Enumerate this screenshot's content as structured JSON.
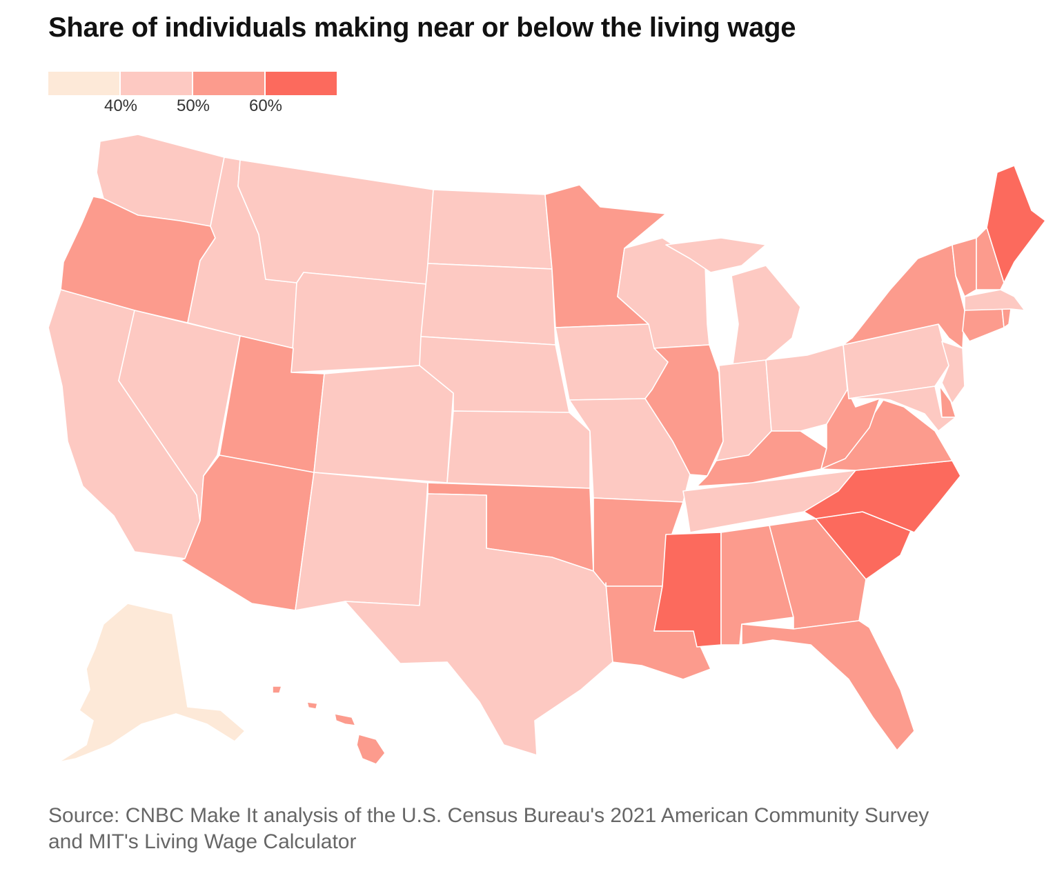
{
  "title": "Share of individuals making near or below the living wage",
  "legend": {
    "bins": [
      {
        "color": "#fde9d8"
      },
      {
        "color": "#fdc9c2"
      },
      {
        "color": "#fc9b8d"
      },
      {
        "color": "#fc6a5d"
      }
    ],
    "labels": [
      "40%",
      "50%",
      "60%"
    ]
  },
  "map": {
    "colors": {
      "c1": "#fde9d8",
      "c2": "#fdc9c2",
      "c3": "#fc9b8d",
      "c4": "#fc6a5d"
    },
    "states": {
      "AK": "c1",
      "HI": "c3",
      "WA": "c2",
      "OR": "c3",
      "CA": "c2",
      "NV": "c2",
      "ID": "c2",
      "MT": "c2",
      "WY": "c2",
      "UT": "c3",
      "AZ": "c3",
      "CO": "c2",
      "NM": "c2",
      "ND": "c2",
      "SD": "c2",
      "NE": "c2",
      "KS": "c2",
      "OK": "c3",
      "TX": "c2",
      "MN": "c3",
      "IA": "c2",
      "MO": "c2",
      "AR": "c3",
      "LA": "c3",
      "WI": "c2",
      "IL": "c3",
      "MI": "c2",
      "IN": "c2",
      "OH": "c2",
      "KY": "c3",
      "TN": "c2",
      "MS": "c4",
      "AL": "c3",
      "GA": "c3",
      "FL": "c3",
      "SC": "c4",
      "NC": "c4",
      "VA": "c3",
      "WV": "c3",
      "PA": "c2",
      "NY": "c3",
      "NJ": "c2",
      "DE": "c3",
      "MD": "c2",
      "CT": "c3",
      "RI": "c3",
      "MA": "c2",
      "VT": "c3",
      "NH": "c3",
      "ME": "c4"
    }
  },
  "source": "Source: CNBC Make It analysis of the U.S. Census Bureau's 2021 American Community Survey and MIT's Living Wage Calculator"
}
